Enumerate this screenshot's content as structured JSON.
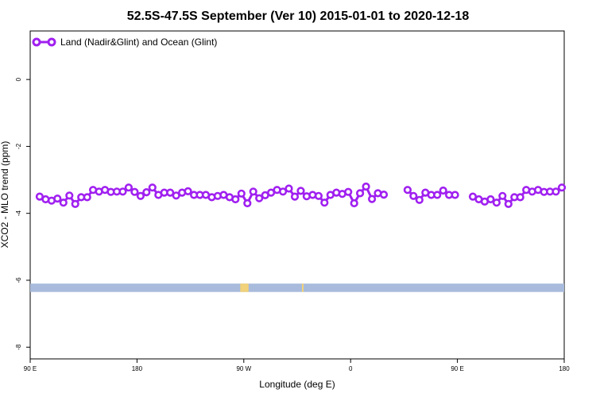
{
  "chart_data": {
    "type": "line",
    "title": "52.5S-47.5S September (Ver 10)   2015-01-01 to 2020-12-18",
    "xlabel": "Longitude (deg E)",
    "ylabel": "XCO2 - MLO trend (ppm)",
    "xlim": [
      90,
      540
    ],
    "ylim": [
      -8.35,
      1.45
    ],
    "x_ticks": [
      {
        "value": 90,
        "label": "90 E"
      },
      {
        "value": 180,
        "label": "180"
      },
      {
        "value": 270,
        "label": "90 W"
      },
      {
        "value": 360,
        "label": "0"
      },
      {
        "value": 450,
        "label": "90 E"
      },
      {
        "value": 540,
        "label": "180"
      }
    ],
    "y_ticks": [
      {
        "value": 0,
        "label": "0"
      },
      {
        "value": -2,
        "label": "-2"
      },
      {
        "value": -4,
        "label": "-4"
      },
      {
        "value": -6,
        "label": "-6"
      },
      {
        "value": -8,
        "label": "-8"
      }
    ],
    "legend_position": "top-left",
    "series": [
      {
        "name": "Land (Nadir&Glint) and Ocean (Glint)",
        "color": "#a020f0",
        "marker": "open-circle",
        "x": [
          98,
          103,
          108,
          113,
          118,
          123,
          128,
          133,
          138,
          143,
          148,
          153,
          158,
          163,
          168,
          173,
          178,
          183,
          188,
          193,
          198,
          203,
          208,
          213,
          218,
          223,
          228,
          233,
          238,
          243,
          248,
          253,
          258,
          263,
          268,
          273,
          278,
          283,
          288,
          293,
          298,
          303,
          308,
          313,
          318,
          323,
          328,
          333,
          338,
          343,
          348,
          353,
          358,
          363,
          368,
          373,
          378,
          383,
          388,
          408,
          413,
          418,
          423,
          428,
          433,
          438,
          443,
          448,
          463,
          468,
          473,
          478,
          483,
          488,
          493,
          498,
          503,
          508,
          513,
          518,
          523,
          528,
          533,
          538
        ],
        "y": [
          -3.5,
          -3.58,
          -3.62,
          -3.56,
          -3.68,
          -3.47,
          -3.72,
          -3.52,
          -3.52,
          -3.3,
          -3.35,
          -3.3,
          -3.36,
          -3.35,
          -3.35,
          -3.23,
          -3.36,
          -3.48,
          -3.37,
          -3.23,
          -3.45,
          -3.38,
          -3.38,
          -3.47,
          -3.38,
          -3.34,
          -3.45,
          -3.45,
          -3.45,
          -3.52,
          -3.48,
          -3.45,
          -3.52,
          -3.58,
          -3.41,
          -3.7,
          -3.35,
          -3.55,
          -3.46,
          -3.38,
          -3.3,
          -3.35,
          -3.26,
          -3.5,
          -3.33,
          -3.49,
          -3.45,
          -3.48,
          -3.68,
          -3.45,
          -3.38,
          -3.42,
          -3.36,
          -3.7,
          -3.4,
          -3.2,
          -3.57,
          -3.4,
          -3.44,
          -3.3,
          -3.48,
          -3.6,
          -3.38,
          -3.45,
          -3.45,
          -3.32,
          -3.45,
          -3.45,
          -3.5,
          -3.58,
          -3.65,
          -3.58,
          -3.68,
          -3.48,
          -3.72,
          -3.52,
          -3.52,
          -3.3,
          -3.35,
          -3.3,
          -3.36,
          -3.35,
          -3.35,
          -3.23
        ]
      }
    ],
    "surface_band": {
      "y_range": [
        -6.1,
        -6.35
      ],
      "ocean_color": "#a8bbdc",
      "land_color": "#f2d27a",
      "land_segments": [
        [
          267,
          274
        ],
        [
          319,
          320
        ]
      ]
    }
  }
}
